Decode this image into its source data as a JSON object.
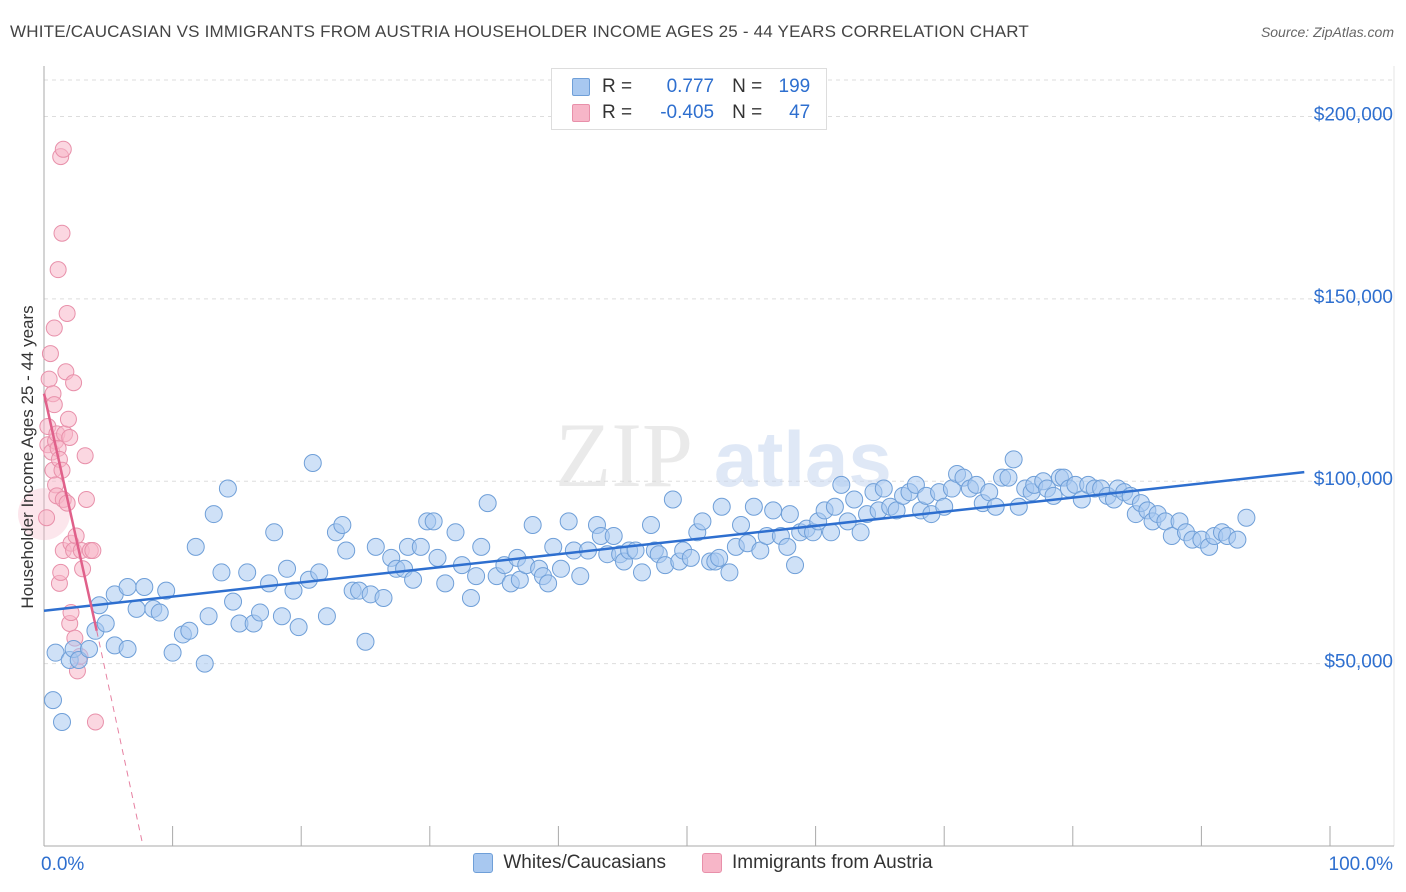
{
  "header": {
    "title": "WHITE/CAUCASIAN VS IMMIGRANTS FROM AUSTRIA HOUSEHOLDER INCOME AGES 25 - 44 YEARS CORRELATION CHART",
    "source": "Source: ZipAtlas.com"
  },
  "watermark": {
    "zip": "ZIP",
    "atlas": "atlas"
  },
  "legend": {
    "rows": [
      {
        "r_label": "R =",
        "r_value": "0.777",
        "n_label": "N =",
        "n_value": "199",
        "color": "#a8c8f0",
        "border": "#6f9fd8"
      },
      {
        "r_label": "R =",
        "r_value": "-0.405",
        "n_label": "N =",
        "n_value": "47",
        "color": "#f7b6c8",
        "border": "#e890aa"
      }
    ]
  },
  "bottom_legend": [
    {
      "label": "Whites/Caucasians",
      "color": "#a8c8f0",
      "border": "#6f9fd8"
    },
    {
      "label": "Immigrants from Austria",
      "color": "#f7b6c8",
      "border": "#e890aa"
    }
  ],
  "chart_data": {
    "type": "scatter",
    "title": "WHITE/CAUCASIAN VS IMMIGRANTS FROM AUSTRIA HOUSEHOLDER INCOME AGES 25 - 44 YEARS CORRELATION CHART",
    "xlabel": "",
    "ylabel": "Householder Income Ages 25 - 44 years",
    "xlim": [
      0,
      100
    ],
    "ylim": [
      0,
      210000
    ],
    "x_tick_labels": [
      "0.0%",
      "100.0%"
    ],
    "y_ticks": [
      50000,
      100000,
      150000,
      200000
    ],
    "y_tick_labels": [
      "$50,000",
      "$100,000",
      "$150,000",
      "$200,000"
    ],
    "colors": {
      "blue": "#2e6fcf",
      "pink": "#e0608a",
      "blue_fill": "#a8c8f0",
      "pink_fill": "#f7b6c8"
    },
    "series": [
      {
        "name": "Whites/Caucasians",
        "color": "#2e6fcf",
        "trend": {
          "x": [
            0,
            98
          ],
          "y": [
            64500,
            102500
          ]
        },
        "points": [
          [
            0.7,
            40000
          ],
          [
            0.9,
            53000
          ],
          [
            1.4,
            34000
          ],
          [
            2.0,
            51000
          ],
          [
            2.3,
            54000
          ],
          [
            2.7,
            51000
          ],
          [
            3.5,
            54000
          ],
          [
            4.0,
            59000
          ],
          [
            4.3,
            66000
          ],
          [
            4.8,
            61000
          ],
          [
            5.5,
            55000
          ],
          [
            5.5,
            69000
          ],
          [
            6.5,
            54000
          ],
          [
            6.5,
            71000
          ],
          [
            7.2,
            65000
          ],
          [
            7.8,
            71000
          ],
          [
            8.5,
            65000
          ],
          [
            9.0,
            64000
          ],
          [
            9.5,
            70000
          ],
          [
            10.0,
            53000
          ],
          [
            10.8,
            58000
          ],
          [
            11.3,
            59000
          ],
          [
            11.8,
            82000
          ],
          [
            12.5,
            50000
          ],
          [
            12.8,
            63000
          ],
          [
            13.2,
            91000
          ],
          [
            13.8,
            75000
          ],
          [
            14.3,
            98000
          ],
          [
            14.7,
            67000
          ],
          [
            15.2,
            61000
          ],
          [
            15.8,
            75000
          ],
          [
            16.3,
            61000
          ],
          [
            16.8,
            64000
          ],
          [
            17.5,
            72000
          ],
          [
            17.9,
            86000
          ],
          [
            18.5,
            63000
          ],
          [
            18.9,
            76000
          ],
          [
            19.4,
            70000
          ],
          [
            19.8,
            60000
          ],
          [
            20.6,
            73000
          ],
          [
            20.9,
            105000
          ],
          [
            21.4,
            75000
          ],
          [
            22.0,
            63000
          ],
          [
            22.7,
            86000
          ],
          [
            23.2,
            88000
          ],
          [
            23.5,
            81000
          ],
          [
            24.0,
            70000
          ],
          [
            24.5,
            70000
          ],
          [
            25.0,
            56000
          ],
          [
            25.4,
            69000
          ],
          [
            25.8,
            82000
          ],
          [
            26.4,
            68000
          ],
          [
            27.0,
            79000
          ],
          [
            27.4,
            76000
          ],
          [
            28.0,
            76000
          ],
          [
            28.3,
            82000
          ],
          [
            28.7,
            73000
          ],
          [
            29.3,
            82000
          ],
          [
            29.8,
            89000
          ],
          [
            30.3,
            89000
          ],
          [
            30.6,
            79000
          ],
          [
            31.2,
            72000
          ],
          [
            32.0,
            86000
          ],
          [
            32.5,
            77000
          ],
          [
            33.2,
            68000
          ],
          [
            33.6,
            74000
          ],
          [
            34.0,
            82000
          ],
          [
            34.5,
            94000
          ],
          [
            35.2,
            74000
          ],
          [
            35.8,
            77000
          ],
          [
            36.3,
            72000
          ],
          [
            36.8,
            79000
          ],
          [
            37.0,
            73000
          ],
          [
            37.5,
            77000
          ],
          [
            38.0,
            88000
          ],
          [
            38.5,
            76000
          ],
          [
            38.8,
            74000
          ],
          [
            39.2,
            72000
          ],
          [
            39.6,
            82000
          ],
          [
            40.2,
            76000
          ],
          [
            40.8,
            89000
          ],
          [
            41.2,
            81000
          ],
          [
            41.7,
            74000
          ],
          [
            42.3,
            81000
          ],
          [
            43.0,
            88000
          ],
          [
            43.3,
            85000
          ],
          [
            43.8,
            80000
          ],
          [
            44.3,
            85000
          ],
          [
            44.8,
            80000
          ],
          [
            45.1,
            78000
          ],
          [
            45.5,
            81000
          ],
          [
            46.0,
            81000
          ],
          [
            46.5,
            75000
          ],
          [
            47.2,
            88000
          ],
          [
            47.5,
            81000
          ],
          [
            47.8,
            80000
          ],
          [
            48.3,
            77000
          ],
          [
            48.9,
            95000
          ],
          [
            49.4,
            78000
          ],
          [
            49.7,
            81000
          ],
          [
            50.3,
            79000
          ],
          [
            50.8,
            86000
          ],
          [
            51.2,
            89000
          ],
          [
            51.8,
            78000
          ],
          [
            52.2,
            78000
          ],
          [
            52.5,
            79000
          ],
          [
            52.7,
            93000
          ],
          [
            53.3,
            75000
          ],
          [
            53.8,
            82000
          ],
          [
            54.2,
            88000
          ],
          [
            54.7,
            83000
          ],
          [
            55.2,
            93000
          ],
          [
            55.7,
            81000
          ],
          [
            56.2,
            85000
          ],
          [
            56.7,
            92000
          ],
          [
            57.3,
            85000
          ],
          [
            57.8,
            82000
          ],
          [
            58.0,
            91000
          ],
          [
            58.4,
            77000
          ],
          [
            58.8,
            86000
          ],
          [
            59.3,
            87000
          ],
          [
            59.8,
            86000
          ],
          [
            60.2,
            89000
          ],
          [
            60.7,
            92000
          ],
          [
            61.2,
            86000
          ],
          [
            61.5,
            93000
          ],
          [
            62.0,
            99000
          ],
          [
            62.5,
            89000
          ],
          [
            63.0,
            95000
          ],
          [
            63.5,
            86000
          ],
          [
            64.0,
            91000
          ],
          [
            64.5,
            97000
          ],
          [
            64.9,
            92000
          ],
          [
            65.3,
            98000
          ],
          [
            65.8,
            93000
          ],
          [
            66.3,
            92000
          ],
          [
            66.8,
            96000
          ],
          [
            67.3,
            97000
          ],
          [
            67.8,
            99000
          ],
          [
            68.2,
            92000
          ],
          [
            68.6,
            96000
          ],
          [
            69.0,
            91000
          ],
          [
            69.6,
            97000
          ],
          [
            70.0,
            93000
          ],
          [
            70.6,
            98000
          ],
          [
            71.0,
            102000
          ],
          [
            71.5,
            101000
          ],
          [
            72.0,
            98000
          ],
          [
            72.5,
            99000
          ],
          [
            73.0,
            94000
          ],
          [
            73.5,
            97000
          ],
          [
            74.0,
            93000
          ],
          [
            74.5,
            101000
          ],
          [
            75.0,
            101000
          ],
          [
            75.4,
            106000
          ],
          [
            75.8,
            93000
          ],
          [
            76.3,
            98000
          ],
          [
            76.8,
            97000
          ],
          [
            77.0,
            99000
          ],
          [
            77.7,
            100000
          ],
          [
            78.0,
            98000
          ],
          [
            78.5,
            96000
          ],
          [
            79.0,
            101000
          ],
          [
            79.3,
            101000
          ],
          [
            79.7,
            98000
          ],
          [
            80.2,
            99000
          ],
          [
            80.7,
            95000
          ],
          [
            81.2,
            99000
          ],
          [
            81.7,
            98000
          ],
          [
            82.2,
            98000
          ],
          [
            82.7,
            96000
          ],
          [
            83.2,
            95000
          ],
          [
            83.5,
            98000
          ],
          [
            84.0,
            97000
          ],
          [
            84.5,
            96000
          ],
          [
            84.9,
            91000
          ],
          [
            85.3,
            94000
          ],
          [
            85.8,
            92000
          ],
          [
            86.2,
            89000
          ],
          [
            86.6,
            91000
          ],
          [
            87.2,
            89000
          ],
          [
            87.7,
            85000
          ],
          [
            88.3,
            89000
          ],
          [
            88.8,
            86000
          ],
          [
            89.3,
            84000
          ],
          [
            90.0,
            84000
          ],
          [
            90.6,
            82000
          ],
          [
            91.0,
            85000
          ],
          [
            91.6,
            86000
          ],
          [
            92.0,
            85000
          ],
          [
            92.8,
            84000
          ],
          [
            93.5,
            90000
          ]
        ]
      },
      {
        "name": "Immigrants from Austria",
        "color": "#e0608a",
        "trend": {
          "x": [
            0,
            4.1
          ],
          "y": [
            124000,
            59000
          ]
        },
        "trend_extension": {
          "x": [
            4.1,
            7.7
          ],
          "y": [
            59000,
            0
          ]
        },
        "points": [
          [
            0.2,
            90000
          ],
          [
            0.3,
            115000
          ],
          [
            0.3,
            110000
          ],
          [
            0.4,
            128000
          ],
          [
            0.5,
            135000
          ],
          [
            0.6,
            108000
          ],
          [
            0.7,
            124000
          ],
          [
            0.7,
            103000
          ],
          [
            0.8,
            142000
          ],
          [
            0.8,
            121000
          ],
          [
            0.9,
            99000
          ],
          [
            0.9,
            111000
          ],
          [
            1.0,
            113000
          ],
          [
            1.0,
            96000
          ],
          [
            1.1,
            158000
          ],
          [
            1.1,
            109000
          ],
          [
            1.2,
            106000
          ],
          [
            1.2,
            72000
          ],
          [
            1.3,
            189000
          ],
          [
            1.3,
            75000
          ],
          [
            1.4,
            168000
          ],
          [
            1.4,
            103000
          ],
          [
            1.5,
            191000
          ],
          [
            1.5,
            95000
          ],
          [
            1.5,
            81000
          ],
          [
            1.6,
            113000
          ],
          [
            1.7,
            130000
          ],
          [
            1.8,
            146000
          ],
          [
            1.8,
            94000
          ],
          [
            1.9,
            117000
          ],
          [
            2.0,
            112000
          ],
          [
            2.0,
            61000
          ],
          [
            2.1,
            83000
          ],
          [
            2.1,
            64000
          ],
          [
            2.3,
            81000
          ],
          [
            2.3,
            127000
          ],
          [
            2.4,
            57000
          ],
          [
            2.5,
            85000
          ],
          [
            2.6,
            48000
          ],
          [
            2.8,
            52000
          ],
          [
            2.9,
            81000
          ],
          [
            3.0,
            76000
          ],
          [
            3.2,
            107000
          ],
          [
            3.3,
            95000
          ],
          [
            3.6,
            81000
          ],
          [
            3.8,
            81000
          ],
          [
            4.0,
            34000
          ]
        ]
      }
    ]
  }
}
